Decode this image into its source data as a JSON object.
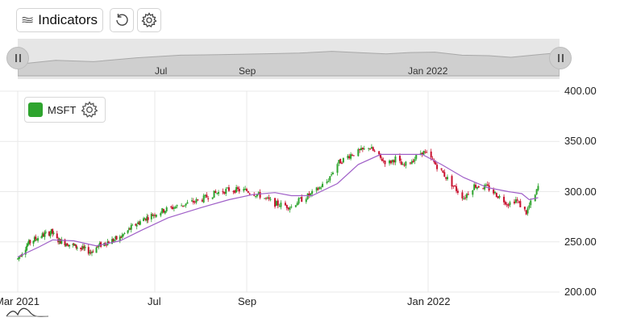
{
  "toolbar": {
    "indicators_label": "Indicators"
  },
  "navigator": {
    "labels": [
      "Jul",
      "Sep",
      "Jan 2022"
    ]
  },
  "legend": {
    "series_name": "MSFT",
    "color": "#2ea42e"
  },
  "colors": {
    "up": "#2ea42e",
    "down": "#c8102e",
    "ma_line": "#a060c8",
    "grid": "#e9e9e9"
  },
  "chart_data": {
    "type": "candlestick",
    "series": [
      {
        "name": "MSFT"
      },
      {
        "name": ""
      }
    ],
    "x_axis": {
      "tick_labels": [
        "Mar 2021",
        "Jul",
        "Sep",
        "Jan 2022"
      ],
      "range": [
        "2021-03-01",
        "2022-03-16"
      ]
    },
    "y_axis": {
      "tick_labels": [
        "200.00",
        "250.00",
        "300.00",
        "350.00",
        "400.00"
      ],
      "range": [
        200,
        400
      ],
      "position": "right"
    },
    "grid": true,
    "trend_points": [
      [
        "2021-03-01",
        233
      ],
      [
        "2021-03-05",
        240
      ],
      [
        "2021-03-10",
        248
      ],
      [
        "2021-03-15",
        252
      ],
      [
        "2021-03-22",
        256
      ],
      [
        "2021-03-31",
        260
      ],
      [
        "2021-04-05",
        252
      ],
      [
        "2021-04-15",
        248
      ],
      [
        "2021-04-25",
        244
      ],
      [
        "2021-05-05",
        240
      ],
      [
        "2021-05-12",
        246
      ],
      [
        "2021-05-20",
        250
      ],
      [
        "2021-05-31",
        254
      ],
      [
        "2021-06-10",
        264
      ],
      [
        "2021-06-20",
        272
      ],
      [
        "2021-07-01",
        278
      ],
      [
        "2021-07-10",
        283
      ],
      [
        "2021-07-20",
        287
      ],
      [
        "2021-08-01",
        292
      ],
      [
        "2021-08-10",
        298
      ],
      [
        "2021-08-20",
        302
      ],
      [
        "2021-09-01",
        301
      ],
      [
        "2021-09-10",
        296
      ],
      [
        "2021-09-20",
        288
      ],
      [
        "2021-10-01",
        285
      ],
      [
        "2021-10-05",
        290
      ],
      [
        "2021-10-15",
        298
      ],
      [
        "2021-10-25",
        310
      ],
      [
        "2021-11-01",
        328
      ],
      [
        "2021-11-10",
        337
      ],
      [
        "2021-11-20",
        342
      ],
      [
        "2021-11-22",
        345
      ],
      [
        "2021-11-30",
        333
      ],
      [
        "2021-12-05",
        328
      ],
      [
        "2021-12-10",
        333
      ],
      [
        "2021-12-15",
        325
      ],
      [
        "2021-12-22",
        332
      ],
      [
        "2021-12-28",
        340
      ],
      [
        "2022-01-01",
        336
      ],
      [
        "2022-01-10",
        320
      ],
      [
        "2022-01-20",
        302
      ],
      [
        "2022-01-25",
        294
      ],
      [
        "2022-02-01",
        306
      ],
      [
        "2022-02-10",
        304
      ],
      [
        "2022-02-15",
        298
      ],
      [
        "2022-02-24",
        288
      ],
      [
        "2022-03-01",
        292
      ],
      [
        "2022-03-08",
        279
      ],
      [
        "2022-03-10",
        286
      ],
      [
        "2022-03-14",
        296
      ],
      [
        "2022-03-16",
        305
      ],
      [
        "2022-03-20",
        315
      ]
    ],
    "ma_points": [
      [
        "2021-03-01",
        235
      ],
      [
        "2021-03-20",
        245
      ],
      [
        "2021-04-01",
        252
      ],
      [
        "2021-04-20",
        251
      ],
      [
        "2021-05-10",
        246
      ],
      [
        "2021-05-31",
        251
      ],
      [
        "2021-06-20",
        262
      ],
      [
        "2021-07-10",
        274
      ],
      [
        "2021-08-01",
        284
      ],
      [
        "2021-08-20",
        292
      ],
      [
        "2021-09-05",
        297
      ],
      [
        "2021-09-20",
        299
      ],
      [
        "2021-10-01",
        296
      ],
      [
        "2021-10-15",
        296
      ],
      [
        "2021-11-01",
        308
      ],
      [
        "2021-11-15",
        327
      ],
      [
        "2021-11-30",
        337
      ],
      [
        "2021-12-10",
        337
      ],
      [
        "2021-12-28",
        337
      ],
      [
        "2022-01-10",
        327
      ],
      [
        "2022-01-25",
        314
      ],
      [
        "2022-02-10",
        304
      ],
      [
        "2022-02-24",
        300
      ],
      [
        "2022-03-05",
        298
      ],
      [
        "2022-03-10",
        292
      ],
      [
        "2022-03-16",
        294
      ]
    ],
    "navigator_points": [
      [
        0,
        0.45
      ],
      [
        0.07,
        0.6
      ],
      [
        0.14,
        0.55
      ],
      [
        0.22,
        0.7
      ],
      [
        0.3,
        0.8
      ],
      [
        0.37,
        0.82
      ],
      [
        0.45,
        0.85
      ],
      [
        0.52,
        0.88
      ],
      [
        0.58,
        0.95
      ],
      [
        0.63,
        0.9
      ],
      [
        0.68,
        0.85
      ],
      [
        0.72,
        0.9
      ],
      [
        0.77,
        0.92
      ],
      [
        0.82,
        0.8
      ],
      [
        0.87,
        0.78
      ],
      [
        0.91,
        0.72
      ],
      [
        0.95,
        0.8
      ],
      [
        1,
        0.9
      ]
    ]
  }
}
